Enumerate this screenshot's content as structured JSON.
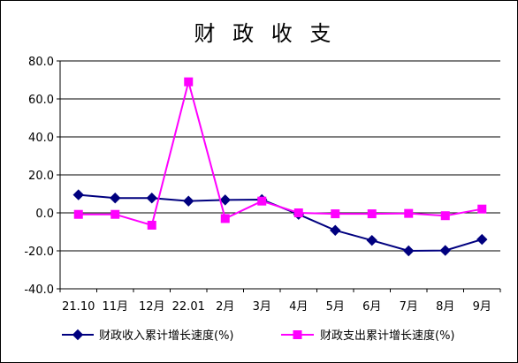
{
  "chart_data": {
    "type": "line",
    "title": "财 政 收 支",
    "categories": [
      "21.10",
      "11月",
      "12月",
      "22.01",
      "2月",
      "3月",
      "4月",
      "5月",
      "6月",
      "7月",
      "8月",
      "9月"
    ],
    "yticks": [
      "80.0",
      "60.0",
      "40.0",
      "20.0",
      "0.0",
      "-20.0",
      "-40.0"
    ],
    "ylim": [
      -40,
      80
    ],
    "grid": true,
    "legend_position": "bottom",
    "series": [
      {
        "name": "财政收入累计增长速度(%)",
        "color": "#00007f",
        "marker": "diamond",
        "values": [
          9.5,
          7.8,
          7.8,
          6.2,
          6.8,
          7.0,
          -0.8,
          -9.2,
          -14.5,
          -20.0,
          -19.8,
          -14.0
        ]
      },
      {
        "name": "财政支出累计增长速度(%)",
        "color": "#ff00ff",
        "marker": "square",
        "values": [
          -0.8,
          -0.8,
          -6.5,
          69.0,
          -3.0,
          6.2,
          0.0,
          -0.5,
          -0.5,
          -0.3,
          -1.5,
          2.0
        ]
      }
    ]
  }
}
